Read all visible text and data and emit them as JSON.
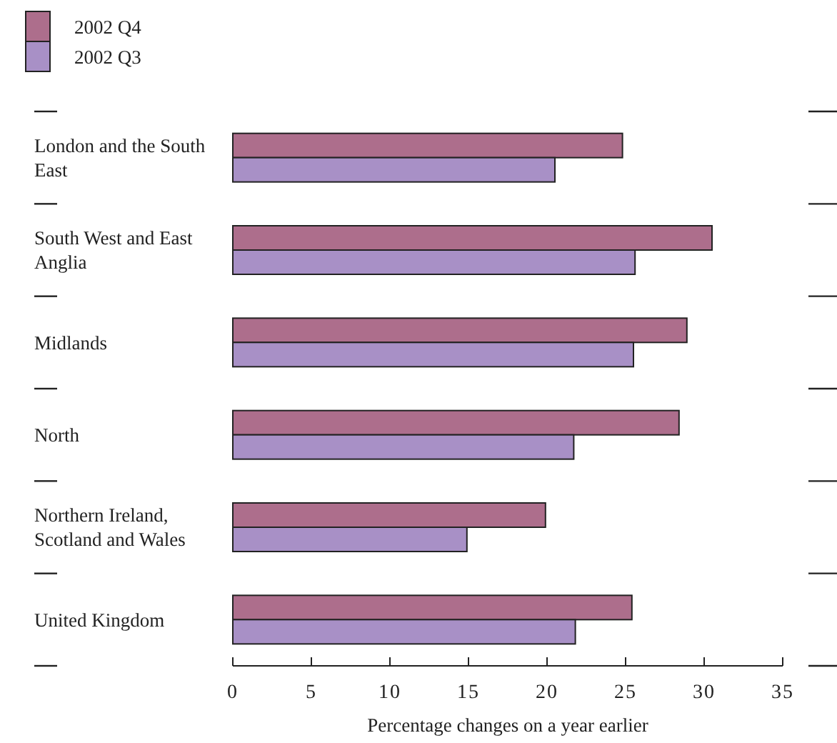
{
  "chart_data": {
    "type": "bar",
    "orientation": "horizontal",
    "xlabel": "Percentage changes on a year earlier",
    "categories": [
      "London and the South East",
      "South West and East Anglia",
      "Midlands",
      "North",
      "Northern Ireland, Scotland and Wales",
      "United Kingdom"
    ],
    "series": [
      {
        "name": "2002 Q4",
        "color": "#ad6e8c",
        "values": [
          24.8,
          30.5,
          28.9,
          28.4,
          19.9,
          25.4
        ]
      },
      {
        "name": "2002 Q3",
        "color": "#a890c6",
        "values": [
          20.5,
          25.6,
          25.5,
          21.7,
          14.9,
          21.8
        ]
      }
    ],
    "xlim": [
      0,
      35
    ],
    "xticks": [
      0,
      5,
      10,
      15,
      20,
      25,
      30,
      35
    ],
    "grid": false,
    "legend": "top left"
  }
}
